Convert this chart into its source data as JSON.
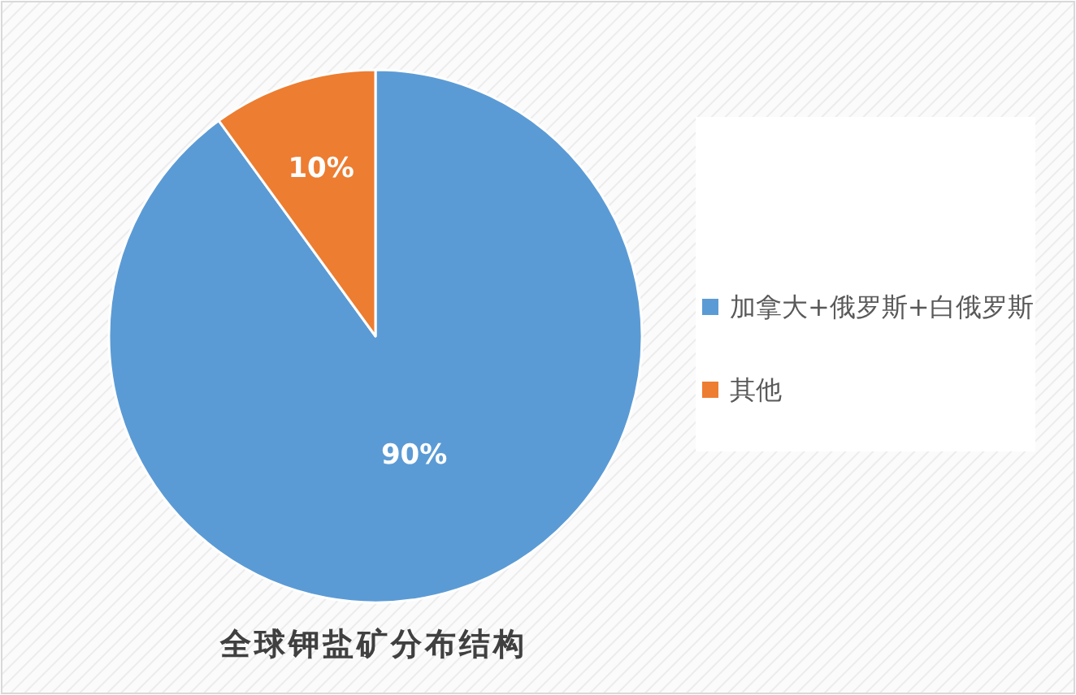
{
  "chart_data": {
    "type": "pie",
    "title": "全球钾盐矿分布结构",
    "categories": [
      "加拿大+俄罗斯+白俄罗斯",
      "其他"
    ],
    "values": [
      90,
      10
    ],
    "colors": [
      "#5b9bd5",
      "#ed7d31"
    ],
    "value_labels": [
      "90%",
      "10%"
    ],
    "legend": "right"
  }
}
